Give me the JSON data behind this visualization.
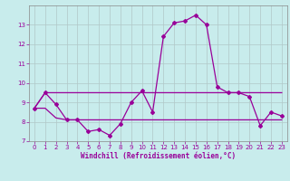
{
  "x": [
    0,
    1,
    2,
    3,
    4,
    5,
    6,
    7,
    8,
    9,
    10,
    11,
    12,
    13,
    14,
    15,
    16,
    17,
    18,
    19,
    20,
    21,
    22,
    23
  ],
  "line1": [
    8.7,
    9.5,
    8.9,
    8.1,
    8.1,
    7.5,
    7.6,
    7.3,
    7.9,
    9.0,
    9.6,
    8.5,
    12.4,
    13.1,
    13.2,
    13.5,
    13.0,
    9.8,
    9.5,
    9.5,
    9.3,
    7.8,
    8.5,
    8.3
  ],
  "line2": [
    8.7,
    9.5,
    9.5,
    9.5,
    9.5,
    9.5,
    9.5,
    9.5,
    9.5,
    9.5,
    9.5,
    9.5,
    9.5,
    9.5,
    9.5,
    9.5,
    9.5,
    9.5,
    9.5,
    9.5,
    9.5,
    9.5,
    9.5,
    9.5
  ],
  "line3": [
    8.7,
    8.7,
    8.2,
    8.1,
    8.1,
    8.1,
    8.1,
    8.1,
    8.1,
    8.1,
    8.1,
    8.1,
    8.1,
    8.1,
    8.1,
    8.1,
    8.1,
    8.1,
    8.1,
    8.1,
    8.1,
    8.1,
    8.1,
    8.1
  ],
  "line_color": "#990099",
  "bg_color": "#c8ecec",
  "grid_color": "#b0c8c8",
  "xlabel": "Windchill (Refroidissement éolien,°C)",
  "ylim": [
    7,
    14
  ],
  "xlim": [
    -0.5,
    23.5
  ],
  "yticks": [
    7,
    8,
    9,
    10,
    11,
    12,
    13
  ],
  "xticks": [
    0,
    1,
    2,
    3,
    4,
    5,
    6,
    7,
    8,
    9,
    10,
    11,
    12,
    13,
    14,
    15,
    16,
    17,
    18,
    19,
    20,
    21,
    22,
    23
  ],
  "tick_fontsize": 5,
  "xlabel_fontsize": 5.5,
  "lw_main": 0.9,
  "lw_env": 0.9,
  "marker_size": 2.0
}
